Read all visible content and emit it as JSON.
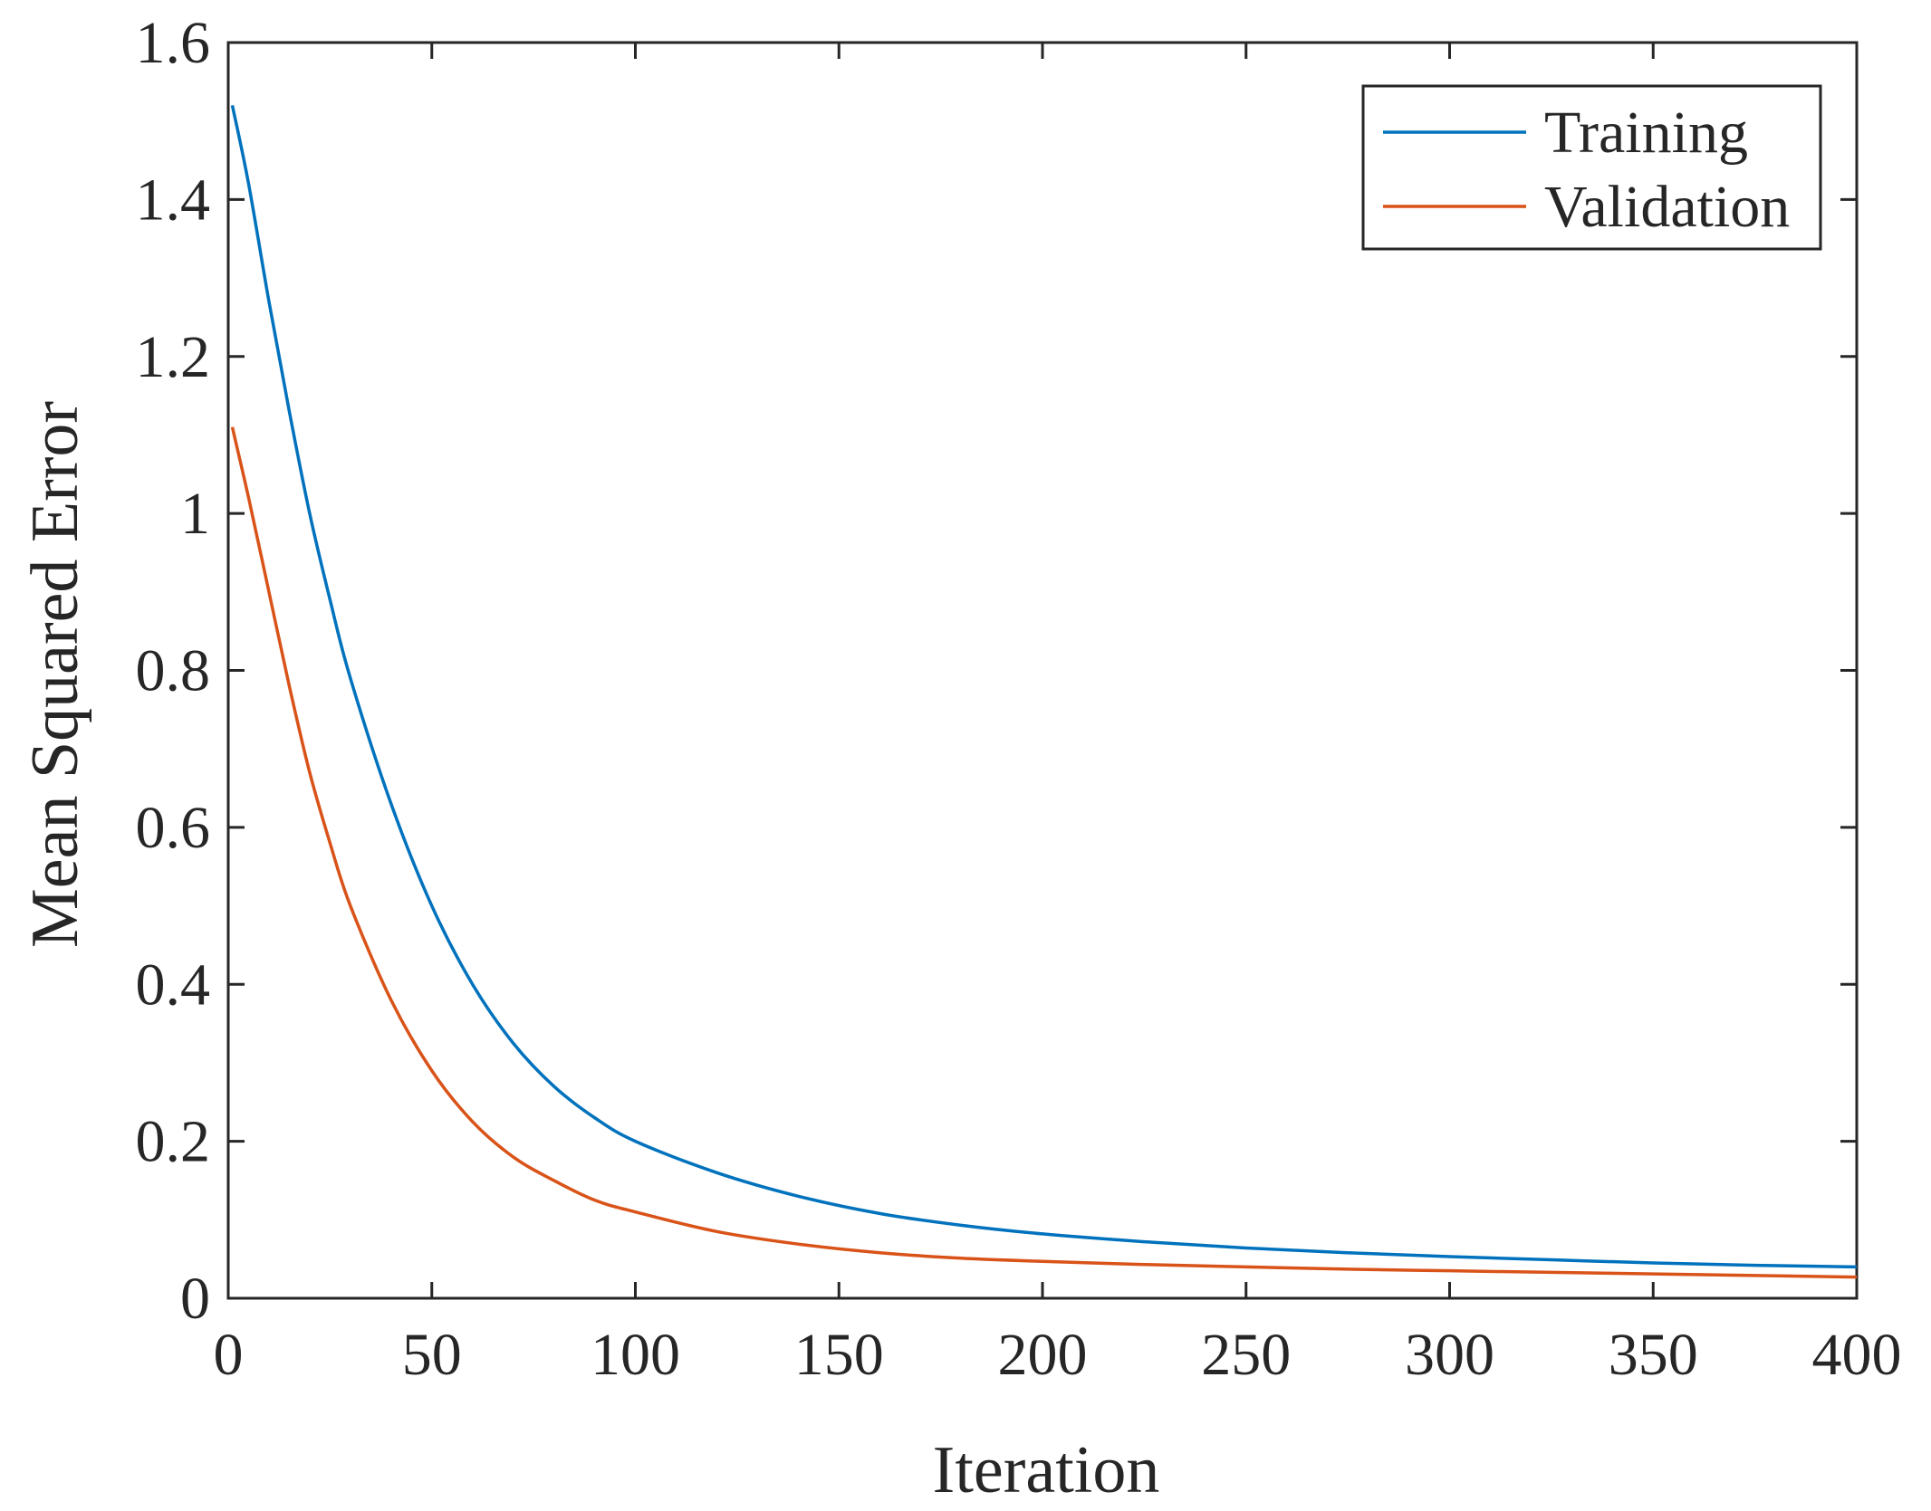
{
  "chart_data": {
    "type": "line",
    "title": "",
    "xlabel": "Iteration",
    "ylabel": "Mean Squared Error",
    "xlim": [
      0,
      400
    ],
    "ylim": [
      0,
      1.6
    ],
    "xticks": [
      0,
      50,
      100,
      150,
      200,
      250,
      300,
      350,
      400
    ],
    "xtick_labels": [
      "0",
      "50",
      "100",
      "150",
      "200",
      "250",
      "300",
      "350",
      "400"
    ],
    "yticks": [
      0,
      0.2,
      0.4,
      0.6,
      0.8,
      1,
      1.2,
      1.4,
      1.6
    ],
    "ytick_labels": [
      "0",
      "0.2",
      "0.4",
      "0.6",
      "0.8",
      "1",
      "1.2",
      "1.4",
      "1.6"
    ],
    "grid": false,
    "legend_position": "top-right",
    "x": [
      1,
      5,
      10,
      15,
      20,
      25,
      30,
      40,
      50,
      60,
      70,
      80,
      90,
      100,
      120,
      140,
      160,
      180,
      200,
      225,
      250,
      275,
      300,
      325,
      350,
      375,
      400
    ],
    "series": [
      {
        "name": "Training",
        "color": "#0072BD",
        "values": [
          1.52,
          1.42,
          1.27,
          1.13,
          1.0,
          0.89,
          0.79,
          0.63,
          0.5,
          0.4,
          0.325,
          0.27,
          0.23,
          0.2,
          0.16,
          0.13,
          0.108,
          0.093,
          0.082,
          0.072,
          0.064,
          0.058,
          0.053,
          0.049,
          0.045,
          0.042,
          0.04
        ]
      },
      {
        "name": "Validation",
        "color": "#D95319",
        "values": [
          1.11,
          1.02,
          0.9,
          0.78,
          0.67,
          0.58,
          0.5,
          0.38,
          0.29,
          0.225,
          0.18,
          0.15,
          0.125,
          0.11,
          0.085,
          0.069,
          0.058,
          0.051,
          0.047,
          0.043,
          0.04,
          0.037,
          0.035,
          0.033,
          0.031,
          0.029,
          0.027
        ]
      }
    ]
  }
}
